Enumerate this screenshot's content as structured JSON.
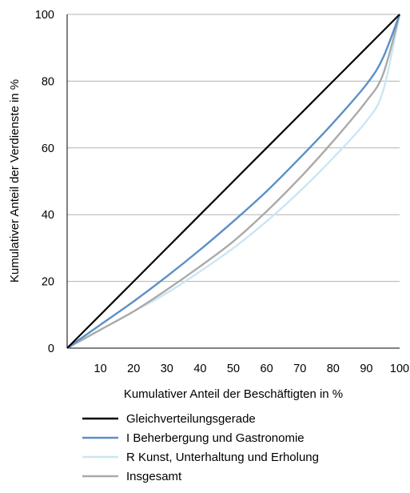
{
  "chart_data": {
    "type": "line",
    "xlabel": "Kumulativer Anteil der Beschäftigten in %",
    "ylabel": "Kumulativer Anteil der Verdienste in %",
    "xlim": [
      0,
      100
    ],
    "ylim": [
      0,
      100
    ],
    "x_ticks": [
      "10",
      "20",
      "30",
      "40",
      "50",
      "60",
      "70",
      "80",
      "90",
      "100"
    ],
    "y_ticks": [
      "0",
      "20",
      "40",
      "60",
      "80",
      "100"
    ],
    "grid": "horizontal",
    "legend_position": "bottom",
    "x": [
      0,
      10,
      20,
      30,
      40,
      50,
      60,
      70,
      80,
      90,
      95,
      100
    ],
    "series": [
      {
        "name": "Gleichverteilungsgerade",
        "color": "#000000",
        "values": [
          0,
          10,
          20,
          30,
          40,
          50,
          60,
          70,
          80,
          90,
          95,
          100
        ]
      },
      {
        "name": "I Beherbergung und Gastronomie",
        "color": "#5b8fc7",
        "values": [
          0,
          7,
          14,
          21.5,
          29.5,
          38,
          47,
          57,
          67.5,
          79,
          87,
          100
        ]
      },
      {
        "name": "R Kunst, Unterhaltung und Erholung",
        "color": "#cce6f3",
        "values": [
          0,
          5.5,
          11,
          16.5,
          23,
          30,
          38,
          47,
          57,
          68,
          77,
          100
        ]
      },
      {
        "name": "Insgesamt",
        "color": "#aaaaaa",
        "values": [
          0,
          5.5,
          11,
          17.5,
          24.5,
          32,
          41,
          51,
          62,
          74,
          82,
          100
        ]
      }
    ]
  }
}
